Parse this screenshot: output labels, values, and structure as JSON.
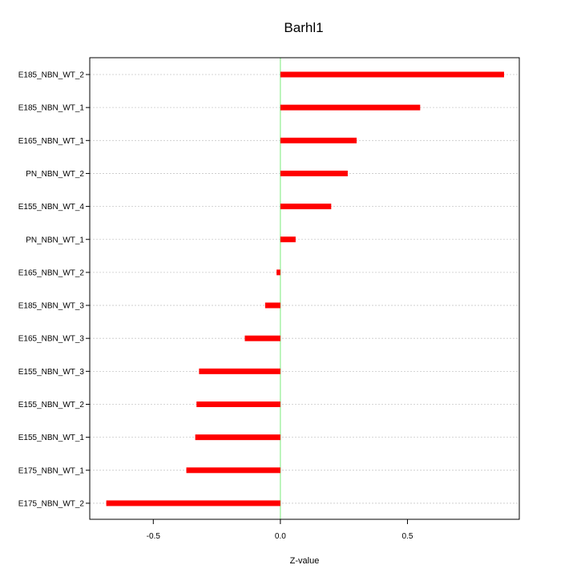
{
  "chart_data": {
    "type": "bar",
    "orientation": "horizontal",
    "title": "Barhl1",
    "xlabel": "Z-value",
    "ylabel": "",
    "xlim": [
      -0.75,
      0.94
    ],
    "xticks": [
      -0.5,
      0.0,
      0.5
    ],
    "xtick_labels": [
      "-0.5",
      "0.0",
      "0.5"
    ],
    "grid": true,
    "categories": [
      "E185_NBN_WT_2",
      "E185_NBN_WT_1",
      "E165_NBN_WT_1",
      "PN_NBN_WT_2",
      "E155_NBN_WT_4",
      "PN_NBN_WT_1",
      "E165_NBN_WT_2",
      "E185_NBN_WT_3",
      "E165_NBN_WT_3",
      "E155_NBN_WT_3",
      "E155_NBN_WT_2",
      "E155_NBN_WT_1",
      "E175_NBN_WT_1",
      "E175_NBN_WT_2"
    ],
    "values": [
      0.88,
      0.55,
      0.3,
      0.265,
      0.2,
      0.06,
      -0.015,
      -0.06,
      -0.14,
      -0.32,
      -0.33,
      -0.335,
      -0.37,
      -0.685
    ],
    "bar_color": "#ff0000",
    "zero_line_color": "#90ee90",
    "grid_color": "#c8c8c8"
  }
}
